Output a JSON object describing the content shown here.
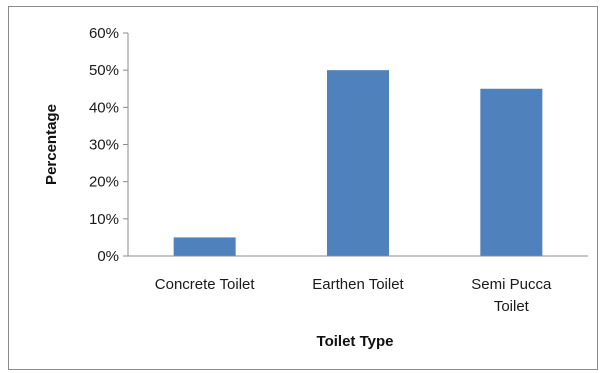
{
  "chart_data": {
    "type": "bar",
    "title": "",
    "xlabel": "Toilet Type",
    "ylabel": "Percentage",
    "categories": [
      [
        "Concrete Toilet"
      ],
      [
        "Earthen Toilet"
      ],
      [
        "Semi Pucca",
        "Toilet"
      ]
    ],
    "values": [
      5,
      50,
      45
    ],
    "ylim": [
      0,
      60
    ],
    "yticks": [
      "0%",
      "10%",
      "20%",
      "30%",
      "40%",
      "50%",
      "60%"
    ],
    "grid": false,
    "legend": "none",
    "bar_color": "#4f81bd"
  }
}
